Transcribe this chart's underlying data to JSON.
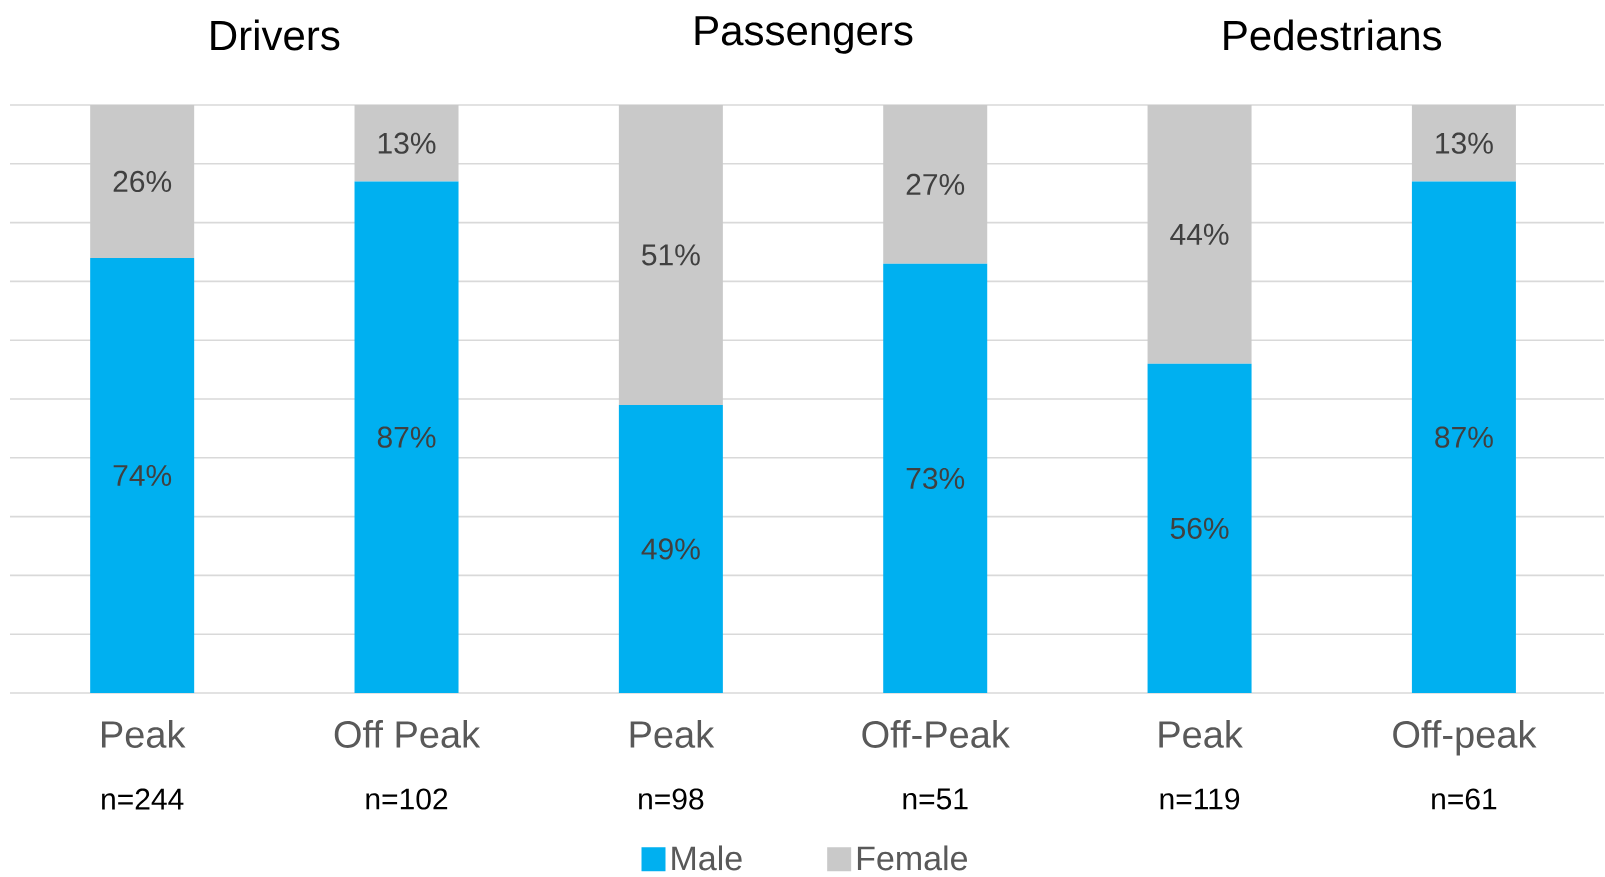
{
  "chart_data": {
    "type": "bar",
    "stacked": true,
    "categories": [
      "Peak",
      "Off Peak",
      "Peak",
      "Off-Peak",
      "Peak",
      "Off-peak"
    ],
    "series": [
      {
        "name": "Male",
        "color": "#00b0f0",
        "values": [
          74,
          87,
          49,
          73,
          56,
          87
        ],
        "value_labels": [
          "74%",
          "87%",
          "49%",
          "73%",
          "56%",
          "87%"
        ]
      },
      {
        "name": "Female",
        "color": "#c9c9c9",
        "values": [
          26,
          13,
          51,
          27,
          44,
          13
        ],
        "value_labels": [
          "26%",
          "13%",
          "51%",
          "27%",
          "44%",
          "13%"
        ]
      }
    ],
    "ylim": [
      0,
      100
    ],
    "yticks": [
      {
        "value": 0,
        "label": null
      },
      {
        "value": 10,
        "label": null
      },
      {
        "value": 20,
        "label": null
      },
      {
        "value": 30,
        "label": null
      },
      {
        "value": 40,
        "label": null
      },
      {
        "value": 50,
        "label": null
      },
      {
        "value": 60,
        "label": null
      },
      {
        "value": 70,
        "label": null
      },
      {
        "value": 80,
        "label": null
      },
      {
        "value": 90,
        "label": null
      },
      {
        "value": 100,
        "label": null
      }
    ],
    "tick_labels": "x",
    "grid": "y",
    "legend": "bottom",
    "annotations": [
      "Drivers",
      "Passengers",
      "Pedestrians",
      "n=244",
      "n=102",
      "n=98",
      "n=51",
      "n=119",
      "n=61"
    ]
  }
}
